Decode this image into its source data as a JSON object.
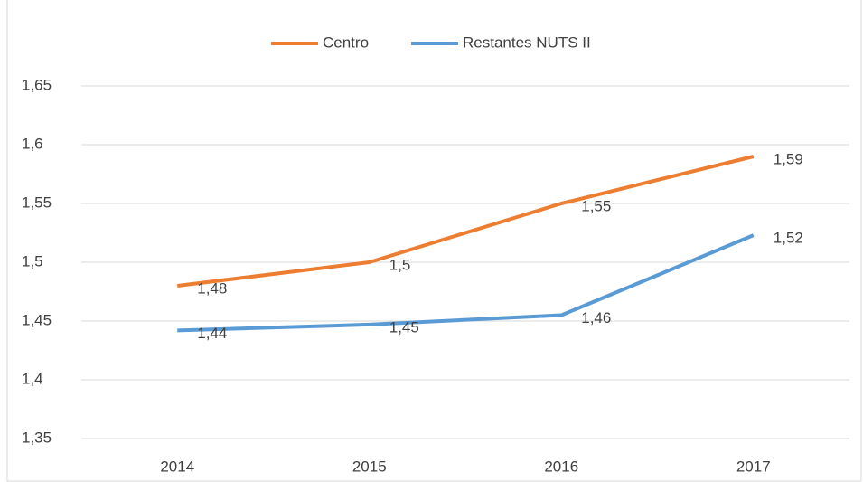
{
  "chart_data": {
    "type": "line",
    "categories": [
      "2014",
      "2015",
      "2016",
      "2017"
    ],
    "series": [
      {
        "name": "Centro",
        "color": "#ed7d31",
        "values": [
          1.48,
          1.5,
          1.55,
          1.59
        ],
        "value_labels": [
          "1,48",
          "1,5",
          "1,55",
          "1,59"
        ]
      },
      {
        "name": "Restantes NUTS II",
        "color": "#5b9bd5",
        "values": [
          1.442,
          1.447,
          1.455,
          1.523
        ],
        "value_labels": [
          "1,44",
          "1,45",
          "1,46",
          "1,52"
        ]
      }
    ],
    "ylim": [
      1.35,
      1.65
    ],
    "yticks": [
      {
        "value": 1.35,
        "label": "1,35"
      },
      {
        "value": 1.4,
        "label": "1,4"
      },
      {
        "value": 1.45,
        "label": "1,45"
      },
      {
        "value": 1.5,
        "label": "1,5"
      },
      {
        "value": 1.55,
        "label": "1,55"
      },
      {
        "value": 1.6,
        "label": "1,6"
      },
      {
        "value": 1.65,
        "label": "1,65"
      }
    ],
    "grid": true,
    "legend": "top"
  }
}
